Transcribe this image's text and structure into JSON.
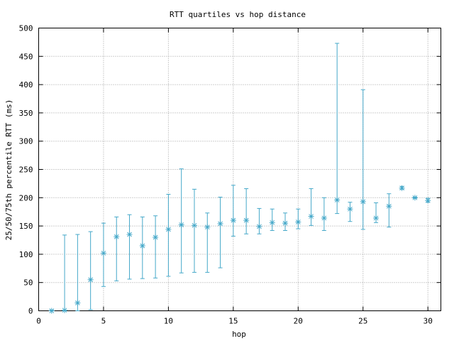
{
  "chart_data": {
    "type": "scatter",
    "title": "RTT quartiles vs hop distance",
    "xlabel": "hop",
    "ylabel": "25/50/75th percentile RTT (ms)",
    "xlim": [
      0,
      31
    ],
    "ylim": [
      0,
      500
    ],
    "xticks": [
      0,
      5,
      10,
      15,
      20,
      25,
      30
    ],
    "yticks": [
      0,
      50,
      100,
      150,
      200,
      250,
      300,
      350,
      400,
      450,
      500
    ],
    "grid": true,
    "color": "#45a8c9",
    "series": [
      {
        "x": [
          1,
          2,
          3,
          4,
          5,
          6,
          7,
          8,
          9,
          10,
          11,
          12,
          13,
          14,
          15,
          16,
          17,
          18,
          19,
          20,
          21,
          22,
          23,
          24,
          25,
          26,
          27,
          28,
          29,
          30
        ],
        "p50": [
          0,
          1,
          14,
          55,
          102,
          131,
          135,
          115,
          130,
          144,
          152,
          151,
          148,
          154,
          160,
          160,
          149,
          156,
          155,
          157,
          167,
          164,
          196,
          180,
          193,
          164,
          185,
          217,
          200,
          195
        ],
        "p25": [
          0,
          0,
          0,
          2,
          43,
          53,
          56,
          57,
          58,
          61,
          67,
          68,
          68,
          76,
          132,
          136,
          136,
          142,
          142,
          145,
          151,
          142,
          172,
          158,
          144,
          156,
          148,
          215,
          199,
          192
        ],
        "p75": [
          1,
          134,
          135,
          140,
          155,
          166,
          170,
          166,
          168,
          206,
          251,
          215,
          173,
          201,
          222,
          216,
          181,
          180,
          173,
          180,
          216,
          200,
          473,
          192,
          391,
          191,
          207,
          220,
          201,
          199
        ]
      }
    ]
  }
}
